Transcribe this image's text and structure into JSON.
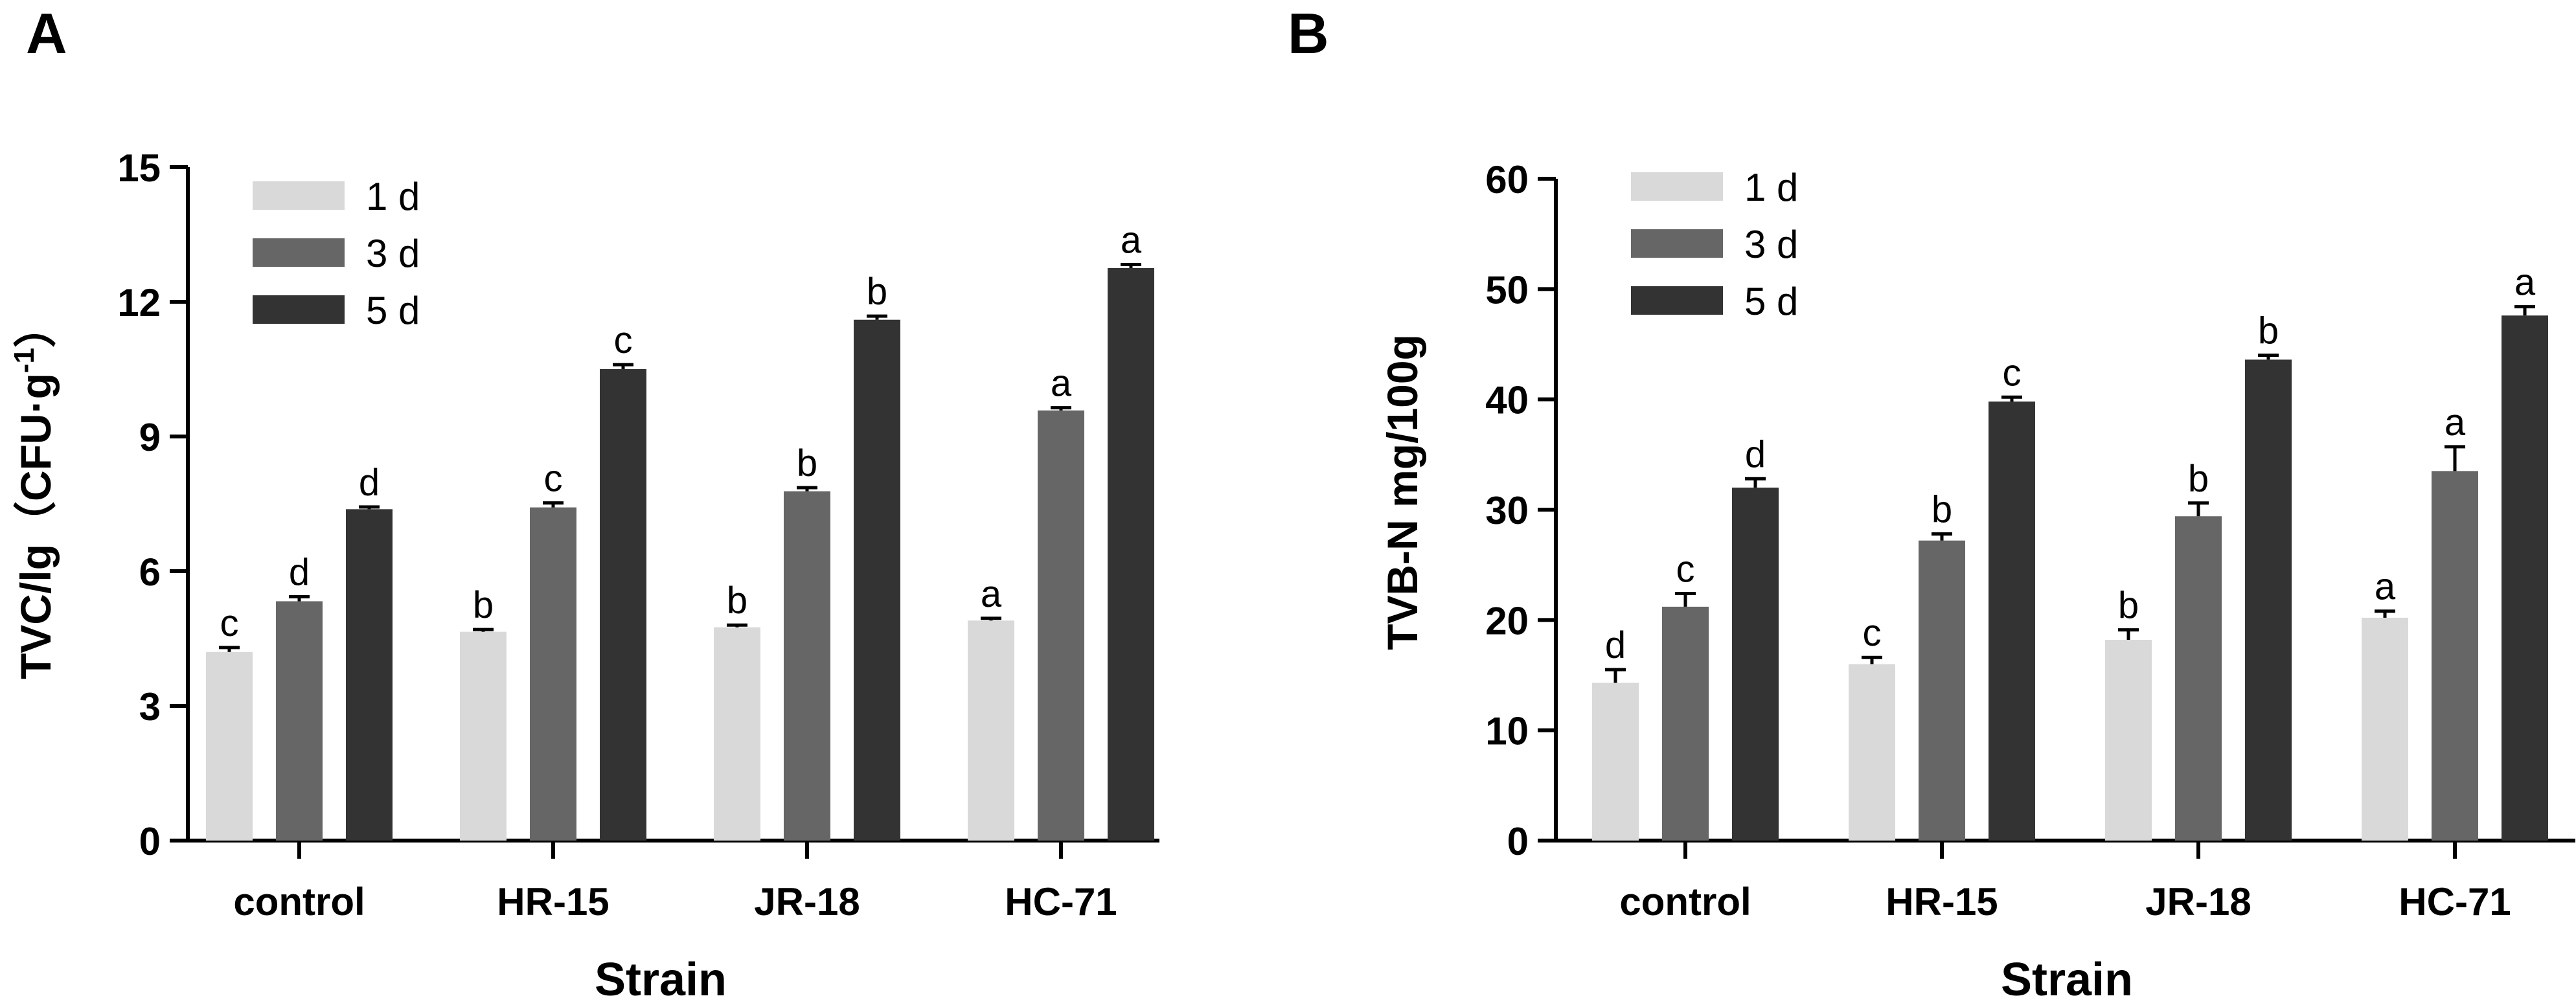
{
  "chart_data": [
    {
      "type": "bar",
      "panel": "A",
      "title": "",
      "xlabel": "Strain",
      "ylabel_main": "TVC/lg（CFU·g",
      "ylabel_sup": "-1",
      "ylabel_end": "）",
      "ylim": [
        0,
        15
      ],
      "yticks": [
        0,
        3,
        6,
        9,
        12,
        15
      ],
      "categories": [
        "control",
        "HR-15",
        "JR-18",
        "HC-71"
      ],
      "series": [
        {
          "name": "1 d",
          "color": "#d9d9d9",
          "values": [
            4.2,
            4.65,
            4.75,
            4.9
          ],
          "errors": [
            0.1,
            0.05,
            0.05,
            0.05
          ],
          "labels": [
            "c",
            "b",
            "b",
            "a"
          ]
        },
        {
          "name": "3 d",
          "color": "#666666",
          "values": [
            5.33,
            7.42,
            7.78,
            9.58
          ],
          "errors": [
            0.1,
            0.1,
            0.08,
            0.06
          ],
          "labels": [
            "d",
            "c",
            "b",
            "a"
          ]
        },
        {
          "name": "5 d",
          "color": "#333333",
          "values": [
            7.38,
            10.5,
            11.6,
            12.75
          ],
          "errors": [
            0.05,
            0.1,
            0.08,
            0.08
          ],
          "labels": [
            "d",
            "c",
            "b",
            "a"
          ]
        }
      ],
      "legend": "top-left"
    },
    {
      "type": "bar",
      "panel": "B",
      "title": "",
      "xlabel": "Strain",
      "ylabel_main": "TVB-N mg/100g",
      "ylabel_sup": "",
      "ylabel_end": "",
      "ylim": [
        0,
        60
      ],
      "yticks": [
        0,
        10,
        20,
        30,
        40,
        50,
        60
      ],
      "categories": [
        "control",
        "HR-15",
        "JR-18",
        "HC-71"
      ],
      "series": [
        {
          "name": "1 d",
          "color": "#d9d9d9",
          "values": [
            14.3,
            16.0,
            18.2,
            20.2
          ],
          "errors": [
            1.2,
            0.6,
            0.9,
            0.6
          ],
          "labels": [
            "d",
            "c",
            "b",
            "a"
          ]
        },
        {
          "name": "3 d",
          "color": "#666666",
          "values": [
            21.2,
            27.2,
            29.4,
            33.5
          ],
          "errors": [
            1.2,
            0.6,
            1.2,
            2.2
          ],
          "labels": [
            "c",
            "b",
            "b",
            "a"
          ]
        },
        {
          "name": "5 d",
          "color": "#333333",
          "values": [
            32.0,
            39.8,
            43.6,
            47.6
          ],
          "errors": [
            0.8,
            0.4,
            0.4,
            0.8
          ],
          "labels": [
            "d",
            "c",
            "b",
            "a"
          ]
        }
      ],
      "legend": "top-left"
    }
  ],
  "panels": [
    {
      "letter": "A"
    },
    {
      "letter": "B"
    }
  ]
}
